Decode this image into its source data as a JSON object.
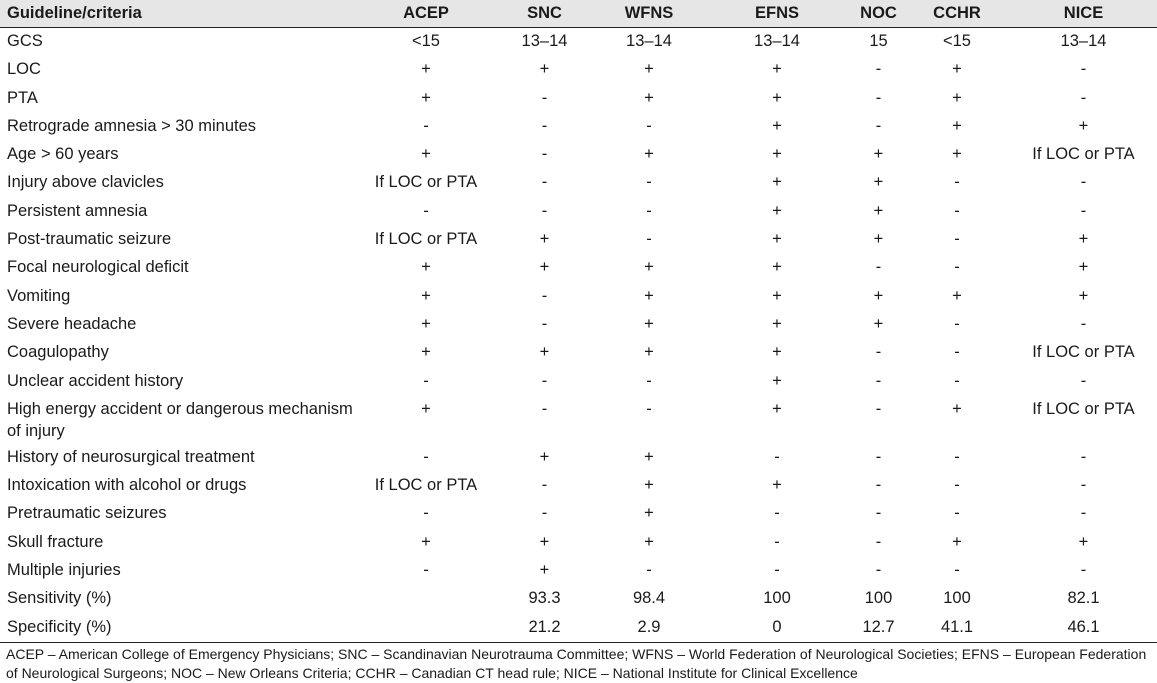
{
  "header": [
    "Guideline/criteria",
    "ACEP",
    "SNC",
    "WFNS",
    "EFNS",
    "NOC",
    "CCHR",
    "NICE"
  ],
  "rows": [
    [
      "GCS",
      "<15",
      "13–14",
      "13–14",
      "13–14",
      "15",
      "<15",
      "13–14"
    ],
    [
      "LOC",
      "+",
      "+",
      "+",
      "+",
      "-",
      "+",
      "-"
    ],
    [
      "PTA",
      "+",
      "-",
      "+",
      "+",
      "-",
      "+",
      "-"
    ],
    [
      "Retrograde amnesia > 30 minutes",
      "-",
      "-",
      "-",
      "+",
      "-",
      "+",
      "+"
    ],
    [
      "Age > 60 years",
      "+",
      "-",
      "+",
      "+",
      "+",
      "+",
      "If LOC or PTA"
    ],
    [
      "Injury above clavicles",
      "If LOC or PTA",
      "-",
      "-",
      "+",
      "+",
      "-",
      "-"
    ],
    [
      "Persistent amnesia",
      "-",
      "-",
      "-",
      "+",
      "+",
      "-",
      "-"
    ],
    [
      "Post-traumatic seizure",
      "If LOC or PTA",
      "+",
      "-",
      "+",
      "+",
      "-",
      "+"
    ],
    [
      "Focal neurological deficit",
      "+",
      "+",
      "+",
      "+",
      "-",
      "-",
      "+"
    ],
    [
      "Vomiting",
      "+",
      "-",
      "+",
      "+",
      "+",
      "+",
      "+"
    ],
    [
      "Severe headache",
      "+",
      "-",
      "+",
      "+",
      "+",
      "-",
      "-"
    ],
    [
      "Coagulopathy",
      "+",
      "+",
      "+",
      "+",
      "-",
      "-",
      "If LOC or PTA"
    ],
    [
      "Unclear accident history",
      "-",
      "-",
      "-",
      "+",
      "-",
      "-",
      "-"
    ],
    [
      "High energy accident or dangerous mechanism of injury",
      "+",
      "-",
      "-",
      "+",
      "-",
      "+",
      "If LOC or PTA"
    ],
    [
      "History of neurosurgical treatment",
      "-",
      "+",
      "+",
      "-",
      "-",
      "-",
      "-"
    ],
    [
      "Intoxication with alcohol or drugs",
      "If LOC or PTA",
      "-",
      "+",
      "+",
      "-",
      "-",
      "-"
    ],
    [
      "Pretraumatic seizures",
      "-",
      "-",
      "+",
      "-",
      "-",
      "-",
      "-"
    ],
    [
      "Skull fracture",
      "+",
      "+",
      "+",
      "-",
      "-",
      "+",
      "+"
    ],
    [
      "Multiple injuries",
      "-",
      "+",
      "-",
      "-",
      "-",
      "-",
      "-"
    ],
    [
      "Sensitivity (%)",
      "",
      "93.3",
      "98.4",
      "100",
      "100",
      "100",
      "82.1"
    ],
    [
      "Specificity (%)",
      "",
      "21.2",
      "2.9",
      "0",
      "12.7",
      "41.1",
      "46.1"
    ]
  ],
  "footnote": "ACEP – American College of Emergency Physicians; SNC – Scandinavian Neurotrauma Committee; WFNS – World Federation of Neurological Societies; EFNS – European Federation of Neurological Surgeons; NOC – New Orleans Criteria; CCHR – Canadian CT head rule; NICE – National Institute for Clinical Excellence"
}
